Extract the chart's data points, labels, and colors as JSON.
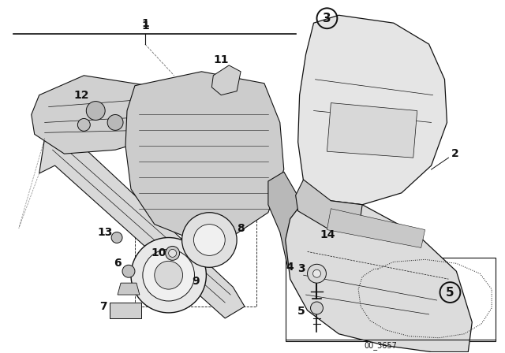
{
  "bg_color": "#ffffff",
  "line_color": "#111111",
  "text_color": "#111111",
  "part_number": "00_3657",
  "label_fontsize": 10,
  "circle_fontsize": 11,
  "fig_width": 6.4,
  "fig_height": 4.48,
  "dpi": 100
}
